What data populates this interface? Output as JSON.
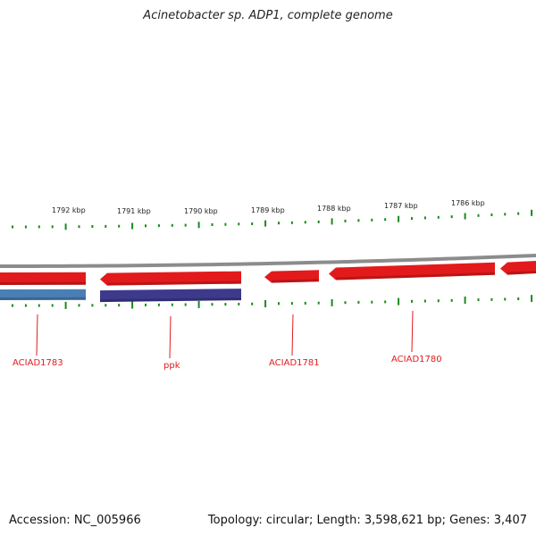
{
  "title": "Acinetobacter sp. ADP1, complete genome",
  "footer": {
    "accession": "Accession: NC_005966",
    "summary": "Topology: circular; Length: 3,598,621 bp; Genes: 3,407"
  },
  "colors": {
    "forward_gene": "#e31a1c",
    "reverse_gene_blue": "#4a7fb5",
    "reverse_gene_purple": "#3d3a8c",
    "backbone": "#8c8c8c",
    "ticks": "#1a8a1a",
    "label_text": "#e31a1c"
  },
  "kbp_labels": [
    "1792 kbp",
    "1791 kbp",
    "1790 kbp",
    "1789 kbp",
    "1788 kbp",
    "1787 kbp",
    "1786 kbp"
  ],
  "genes": [
    {
      "name": "ACIAD1783",
      "strand": "forward"
    },
    {
      "name": "ppk",
      "strand": "forward"
    },
    {
      "name": "ACIAD1781",
      "strand": "forward"
    },
    {
      "name": "ACIAD1780",
      "strand": "forward"
    }
  ]
}
